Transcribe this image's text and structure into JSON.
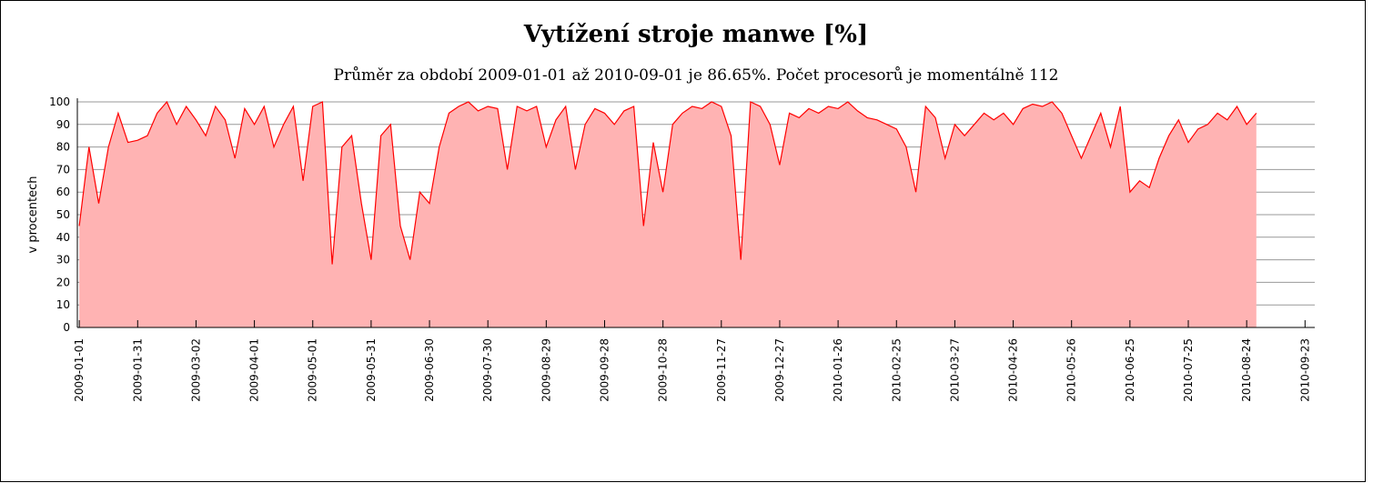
{
  "chart_data": {
    "type": "area",
    "title": "Vytížení  stroje manwe [%]",
    "subtitle": "Průměr za období 2009-01-01 až 2010-09-01 je 86.65%. Počet procesorů je momentálně 112",
    "y_label": "v procentech",
    "xlim": [
      "2008-12-31",
      "2010-09-28"
    ],
    "ylim": [
      0,
      100
    ],
    "yticks": [
      0,
      10,
      20,
      30,
      40,
      50,
      60,
      70,
      80,
      90,
      100
    ],
    "xticks": [
      "2009-01-01",
      "2009-01-31",
      "2009-03-02",
      "2009-04-01",
      "2009-05-01",
      "2009-05-31",
      "2009-06-30",
      "2009-07-30",
      "2009-08-29",
      "2009-09-28",
      "2009-10-28",
      "2009-11-27",
      "2009-12-27",
      "2010-01-26",
      "2010-02-25",
      "2010-03-27",
      "2010-04-26",
      "2010-05-26",
      "2010-06-25",
      "2010-07-25",
      "2010-08-24",
      "2010-09-23"
    ],
    "grid": true,
    "color": "#ff0000",
    "fill": "#ffb3b3",
    "x": [
      "2009-01-01",
      "2009-01-06",
      "2009-01-11",
      "2009-01-16",
      "2009-01-21",
      "2009-01-26",
      "2009-01-31",
      "2009-02-05",
      "2009-02-10",
      "2009-02-15",
      "2009-02-20",
      "2009-02-25",
      "2009-03-02",
      "2009-03-07",
      "2009-03-12",
      "2009-03-17",
      "2009-03-22",
      "2009-03-27",
      "2009-04-01",
      "2009-04-06",
      "2009-04-11",
      "2009-04-16",
      "2009-04-21",
      "2009-04-26",
      "2009-05-01",
      "2009-05-06",
      "2009-05-11",
      "2009-05-16",
      "2009-05-21",
      "2009-05-26",
      "2009-05-31",
      "2009-06-05",
      "2009-06-10",
      "2009-06-15",
      "2009-06-20",
      "2009-06-25",
      "2009-06-30",
      "2009-07-05",
      "2009-07-10",
      "2009-07-15",
      "2009-07-20",
      "2009-07-25",
      "2009-07-30",
      "2009-08-04",
      "2009-08-09",
      "2009-08-14",
      "2009-08-19",
      "2009-08-24",
      "2009-08-29",
      "2009-09-03",
      "2009-09-08",
      "2009-09-13",
      "2009-09-18",
      "2009-09-23",
      "2009-09-28",
      "2009-10-03",
      "2009-10-08",
      "2009-10-13",
      "2009-10-18",
      "2009-10-23",
      "2009-10-28",
      "2009-11-02",
      "2009-11-07",
      "2009-11-12",
      "2009-11-17",
      "2009-11-22",
      "2009-11-27",
      "2009-12-02",
      "2009-12-07",
      "2009-12-12",
      "2009-12-17",
      "2009-12-22",
      "2009-12-27",
      "2010-01-01",
      "2010-01-06",
      "2010-01-11",
      "2010-01-16",
      "2010-01-21",
      "2010-01-26",
      "2010-01-31",
      "2010-02-05",
      "2010-02-10",
      "2010-02-15",
      "2010-02-20",
      "2010-02-25",
      "2010-03-02",
      "2010-03-07",
      "2010-03-12",
      "2010-03-17",
      "2010-03-22",
      "2010-03-27",
      "2010-04-01",
      "2010-04-06",
      "2010-04-11",
      "2010-04-16",
      "2010-04-21",
      "2010-04-26",
      "2010-05-01",
      "2010-05-06",
      "2010-05-11",
      "2010-05-16",
      "2010-05-21",
      "2010-05-26",
      "2010-05-31",
      "2010-06-05",
      "2010-06-10",
      "2010-06-15",
      "2010-06-20",
      "2010-06-25",
      "2010-06-30",
      "2010-07-05",
      "2010-07-10",
      "2010-07-15",
      "2010-07-20",
      "2010-07-25",
      "2010-07-30",
      "2010-08-04",
      "2010-08-09",
      "2010-08-14",
      "2010-08-19",
      "2010-08-24",
      "2010-08-29"
    ],
    "values": [
      45,
      80,
      55,
      80,
      95,
      82,
      83,
      85,
      95,
      100,
      90,
      98,
      92,
      85,
      98,
      92,
      75,
      97,
      90,
      98,
      80,
      90,
      98,
      65,
      98,
      100,
      28,
      80,
      85,
      55,
      30,
      85,
      90,
      45,
      30,
      60,
      55,
      80,
      95,
      98,
      100,
      96,
      98,
      97,
      70,
      98,
      96,
      98,
      80,
      92,
      98,
      70,
      90,
      97,
      95,
      90,
      96,
      98,
      45,
      82,
      60,
      90,
      95,
      98,
      97,
      100,
      98,
      85,
      30,
      100,
      98,
      90,
      72,
      95,
      93,
      97,
      95,
      98,
      97,
      100,
      96,
      93,
      92,
      90,
      88,
      80,
      60,
      98,
      93,
      75,
      90,
      85,
      90,
      95,
      92,
      95,
      90,
      97,
      99,
      98,
      100,
      95,
      85,
      75,
      85,
      95,
      80,
      98,
      60,
      65,
      62,
      75,
      85,
      92,
      82,
      88,
      90,
      95,
      92,
      98,
      90,
      95
    ]
  }
}
